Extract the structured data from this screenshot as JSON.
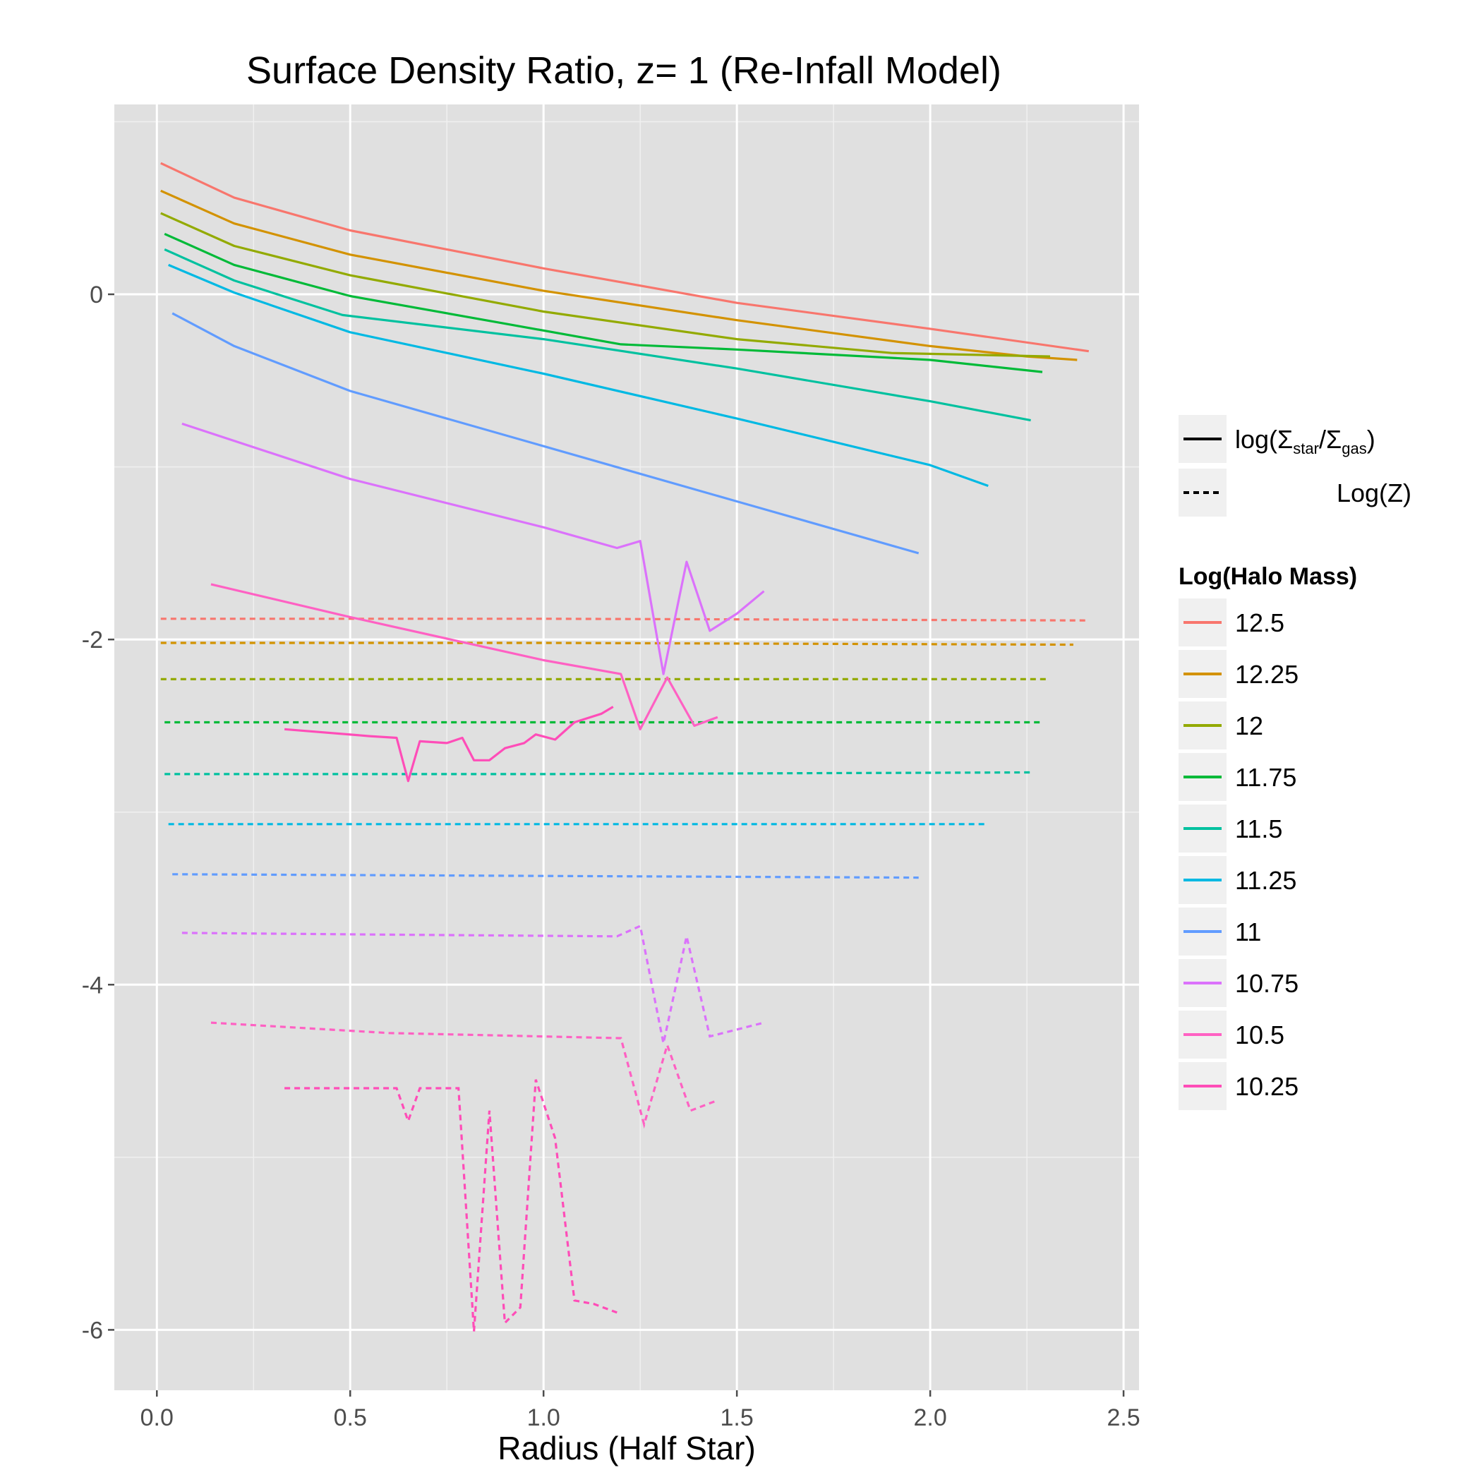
{
  "chart_data": {
    "type": "line",
    "title": "Surface Density Ratio, z= 1 (Re-Infall Model)",
    "xlabel": "Radius (Half Star)",
    "ylabel": "",
    "xlim": [
      -0.11,
      2.54
    ],
    "ylim": [
      -6.35,
      1.1
    ],
    "xticks": [
      0.0,
      0.5,
      1.0,
      1.5,
      2.0,
      2.5
    ],
    "xtick_labels": [
      "0.0",
      "0.5",
      "1.0",
      "1.5",
      "2.0",
      "2.5"
    ],
    "yticks": [
      0,
      -2,
      -4,
      -6
    ],
    "ytick_labels": [
      "0",
      "-2",
      "-4",
      "-6"
    ],
    "grid": true,
    "background": "#e0e0e0",
    "linetype_legend": {
      "entries": [
        {
          "style": "solid",
          "label": "log(Σstar/Σgas)",
          "label_main": "log(Σ",
          "sub1": "star",
          "mid": "/Σ",
          "sub2": "gas",
          "close": ")"
        },
        {
          "style": "dashed",
          "label": "Log(Z)"
        }
      ]
    },
    "legend": {
      "title": "Log(Halo Mass)",
      "position": "right"
    },
    "series": [
      {
        "name": "12.5",
        "color": "#F8766D",
        "ratio": [
          [
            0.01,
            0.76
          ],
          [
            0.2,
            0.56
          ],
          [
            0.5,
            0.37
          ],
          [
            1.0,
            0.15
          ],
          [
            1.5,
            -0.05
          ],
          [
            2.0,
            -0.2
          ],
          [
            2.41,
            -0.33
          ]
        ],
        "logz": [
          [
            0.01,
            -1.88
          ],
          [
            1.0,
            -1.88
          ],
          [
            2.41,
            -1.89
          ]
        ]
      },
      {
        "name": "12.25",
        "color": "#D39200",
        "ratio": [
          [
            0.01,
            0.6
          ],
          [
            0.2,
            0.41
          ],
          [
            0.5,
            0.23
          ],
          [
            1.0,
            0.02
          ],
          [
            1.5,
            -0.15
          ],
          [
            2.0,
            -0.3
          ],
          [
            2.25,
            -0.36
          ],
          [
            2.38,
            -0.38
          ]
        ],
        "logz": [
          [
            0.01,
            -2.02
          ],
          [
            1.0,
            -2.02
          ],
          [
            2.37,
            -2.03
          ]
        ]
      },
      {
        "name": "12",
        "color": "#93AA00",
        "ratio": [
          [
            0.01,
            0.47
          ],
          [
            0.2,
            0.28
          ],
          [
            0.5,
            0.11
          ],
          [
            1.0,
            -0.1
          ],
          [
            1.5,
            -0.26
          ],
          [
            1.9,
            -0.34
          ],
          [
            2.31,
            -0.36
          ]
        ],
        "logz": [
          [
            0.01,
            -2.23
          ],
          [
            1.0,
            -2.23
          ],
          [
            2.3,
            -2.23
          ]
        ]
      },
      {
        "name": "11.75",
        "color": "#00BA38",
        "ratio": [
          [
            0.02,
            0.35
          ],
          [
            0.2,
            0.17
          ],
          [
            0.5,
            -0.01
          ],
          [
            0.9,
            -0.17
          ],
          [
            1.15,
            -0.27
          ],
          [
            1.2,
            -0.29
          ],
          [
            1.5,
            -0.32
          ],
          [
            2.0,
            -0.38
          ],
          [
            2.29,
            -0.45
          ]
        ],
        "logz": [
          [
            0.02,
            -2.48
          ],
          [
            1.0,
            -2.48
          ],
          [
            2.29,
            -2.48
          ]
        ]
      },
      {
        "name": "11.5",
        "color": "#00C19F",
        "ratio": [
          [
            0.02,
            0.26
          ],
          [
            0.2,
            0.08
          ],
          [
            0.48,
            -0.12
          ],
          [
            1.0,
            -0.26
          ],
          [
            1.5,
            -0.43
          ],
          [
            2.0,
            -0.62
          ],
          [
            2.26,
            -0.73
          ]
        ],
        "logz": [
          [
            0.02,
            -2.78
          ],
          [
            1.0,
            -2.78
          ],
          [
            2.26,
            -2.77
          ]
        ]
      },
      {
        "name": "11.25",
        "color": "#00B9E3",
        "ratio": [
          [
            0.03,
            0.17
          ],
          [
            0.2,
            0.01
          ],
          [
            0.5,
            -0.22
          ],
          [
            1.0,
            -0.46
          ],
          [
            1.5,
            -0.72
          ],
          [
            2.0,
            -0.99
          ],
          [
            2.15,
            -1.11
          ]
        ],
        "logz": [
          [
            0.03,
            -3.07
          ],
          [
            1.0,
            -3.07
          ],
          [
            2.15,
            -3.07
          ]
        ]
      },
      {
        "name": "11",
        "color": "#619CFF",
        "ratio": [
          [
            0.04,
            -0.11
          ],
          [
            0.2,
            -0.3
          ],
          [
            0.5,
            -0.56
          ],
          [
            1.0,
            -0.88
          ],
          [
            1.5,
            -1.2
          ],
          [
            1.97,
            -1.5
          ]
        ],
        "logz": [
          [
            0.04,
            -3.36
          ],
          [
            1.0,
            -3.37
          ],
          [
            1.97,
            -3.38
          ]
        ]
      },
      {
        "name": "10.75",
        "color": "#DB72FB",
        "ratio": [
          [
            0.065,
            -0.75
          ],
          [
            0.5,
            -1.07
          ],
          [
            1.0,
            -1.35
          ],
          [
            1.19,
            -1.47
          ],
          [
            1.25,
            -1.43
          ],
          [
            1.31,
            -2.2
          ],
          [
            1.37,
            -1.55
          ],
          [
            1.43,
            -1.95
          ],
          [
            1.5,
            -1.85
          ],
          [
            1.57,
            -1.72
          ]
        ],
        "logz": [
          [
            0.065,
            -3.7
          ],
          [
            0.6,
            -3.71
          ],
          [
            1.19,
            -3.72
          ],
          [
            1.25,
            -3.66
          ],
          [
            1.31,
            -4.34
          ],
          [
            1.37,
            -3.72
          ],
          [
            1.43,
            -4.3
          ],
          [
            1.57,
            -4.22
          ]
        ]
      },
      {
        "name": "10.5",
        "color": "#FF61C3",
        "ratio": [
          [
            0.14,
            -1.68
          ],
          [
            0.5,
            -1.87
          ],
          [
            1.0,
            -2.12
          ],
          [
            1.2,
            -2.2
          ],
          [
            1.25,
            -2.52
          ],
          [
            1.32,
            -2.22
          ],
          [
            1.39,
            -2.5
          ],
          [
            1.45,
            -2.45
          ]
        ],
        "logz": [
          [
            0.14,
            -4.22
          ],
          [
            0.6,
            -4.28
          ],
          [
            1.2,
            -4.31
          ],
          [
            1.26,
            -4.81
          ],
          [
            1.32,
            -4.35
          ],
          [
            1.38,
            -4.73
          ],
          [
            1.45,
            -4.67
          ]
        ]
      },
      {
        "name": "10.25",
        "color": "#FF4DB8",
        "ratio": [
          [
            0.33,
            -2.52
          ],
          [
            0.55,
            -2.56
          ],
          [
            0.62,
            -2.57
          ],
          [
            0.65,
            -2.82
          ],
          [
            0.68,
            -2.59
          ],
          [
            0.75,
            -2.6
          ],
          [
            0.79,
            -2.57
          ],
          [
            0.82,
            -2.7
          ],
          [
            0.86,
            -2.7
          ],
          [
            0.9,
            -2.63
          ],
          [
            0.95,
            -2.6
          ],
          [
            0.98,
            -2.55
          ],
          [
            1.03,
            -2.58
          ],
          [
            1.08,
            -2.48
          ],
          [
            1.15,
            -2.43
          ],
          [
            1.18,
            -2.39
          ]
        ],
        "logz": [
          [
            0.33,
            -4.6
          ],
          [
            0.62,
            -4.6
          ],
          [
            0.65,
            -4.79
          ],
          [
            0.68,
            -4.6
          ],
          [
            0.78,
            -4.6
          ],
          [
            0.82,
            -6.01
          ],
          [
            0.86,
            -4.73
          ],
          [
            0.9,
            -5.96
          ],
          [
            0.94,
            -5.87
          ],
          [
            0.98,
            -4.55
          ],
          [
            1.03,
            -4.89
          ],
          [
            1.08,
            -5.83
          ],
          [
            1.13,
            -5.85
          ],
          [
            1.19,
            -5.9
          ]
        ]
      }
    ]
  }
}
